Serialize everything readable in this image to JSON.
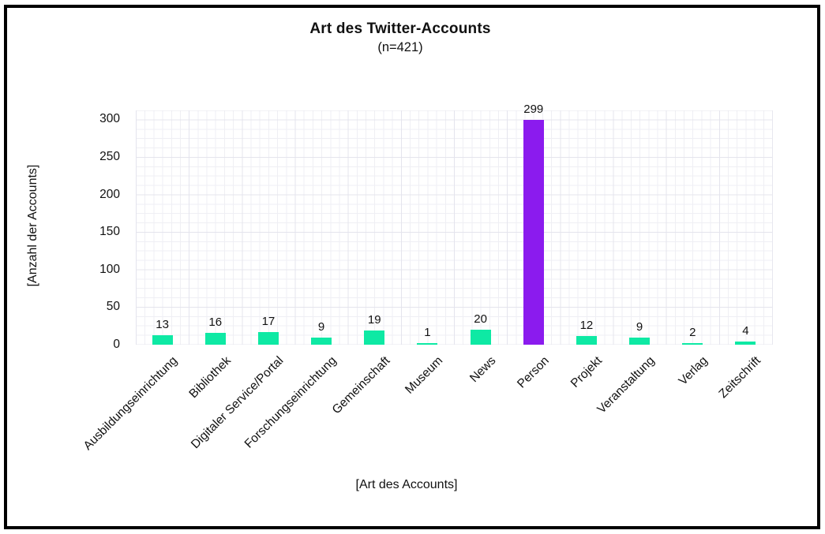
{
  "chart_data": {
    "type": "bar",
    "title": "Art des Twitter-Accounts",
    "subtitle": "(n=421)",
    "xlabel": "[Art des Accounts]",
    "ylabel": "[Anzahl der Accounts]",
    "categories": [
      "Ausbildungseinrichtung",
      "Bibliothek",
      "Digitaler Service/Portal",
      "Forschungseinrichtung",
      "Gemeinschaft",
      "Museum",
      "News",
      "Person",
      "Projekt",
      "Veranstaltung",
      "Verlag",
      "Zeitschrift"
    ],
    "values": [
      13,
      16,
      17,
      9,
      19,
      1,
      20,
      299,
      12,
      9,
      2,
      4
    ],
    "yticks": [
      0,
      50,
      100,
      150,
      200,
      250,
      300
    ],
    "ylim": [
      0,
      312
    ],
    "grid": true,
    "legend": false,
    "value_labels": true,
    "highlight_category": "Person",
    "bar_color_default": "#0EE9A4",
    "bar_color_highlight": "#8B1BEE"
  },
  "colors": {
    "background": "#FFFFFF",
    "frame_border": "#000000",
    "grid_minor": "#EFEFF4",
    "grid_major": "#E4E4ED",
    "text": "#111111"
  }
}
